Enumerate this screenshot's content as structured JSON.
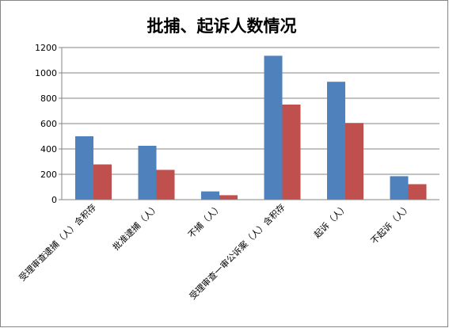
{
  "chart_data": {
    "type": "bar",
    "title": "批捕、起诉人数情况",
    "categories": [
      "受理审查逮捕（人）含积存",
      "批准逮捕（人）",
      "不捕（人）",
      "受理审查一审公诉案（人）含积存",
      "起诉（人）",
      "不起诉（人）"
    ],
    "series": [
      {
        "color": "#4f81bd",
        "values": [
          500,
          425,
          65,
          1135,
          930,
          185
        ]
      },
      {
        "color": "#c0504d",
        "values": [
          278,
          235,
          35,
          750,
          605,
          122
        ]
      }
    ],
    "ylim": [
      0,
      1200
    ],
    "yticks": [
      0,
      200,
      400,
      600,
      800,
      1000,
      1200
    ],
    "grid": true
  }
}
